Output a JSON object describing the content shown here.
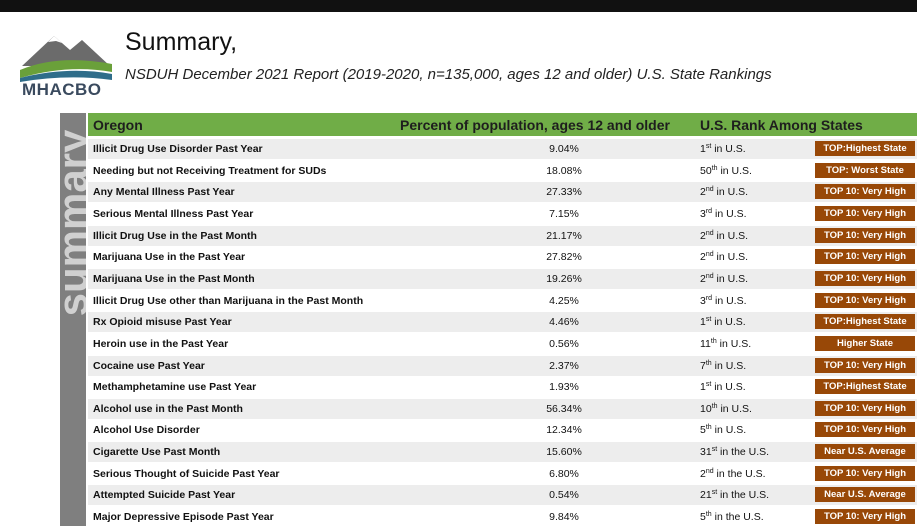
{
  "header": {
    "logo": "MHACBO",
    "title": "Summary,",
    "subtitle": "NSDUH December 2021 Report (2019-2020, n=135,000, ages 12 and older) U.S. State Rankings",
    "sidebar": "summary"
  },
  "table": {
    "columns": [
      "Oregon",
      "Percent of population, ages 12 and older",
      "U.S. Rank Among States"
    ],
    "rows": [
      {
        "name": "Illicit Drug Use Disorder Past Year",
        "percent": "9.04%",
        "rank": {
          "n": "1",
          "sup": "st",
          "text": " in U.S."
        },
        "badge": "TOP:Highest State"
      },
      {
        "name": "Needing but not Receiving Treatment for SUDs",
        "percent": "18.08%",
        "rank": {
          "n": "50",
          "sup": "th",
          "text": " in U.S."
        },
        "badge": "TOP: Worst State"
      },
      {
        "name": "Any Mental Illness Past Year",
        "percent": "27.33%",
        "rank": {
          "n": "2",
          "sup": "nd",
          "text": " in U.S."
        },
        "badge": "TOP 10: Very High"
      },
      {
        "name": "Serious Mental Illness Past Year",
        "percent": "7.15%",
        "rank": {
          "n": "3",
          "sup": "rd",
          "text": " in U.S."
        },
        "badge": "TOP 10: Very High"
      },
      {
        "name": "Illicit Drug Use in the Past Month",
        "percent": "21.17%",
        "rank": {
          "n": "2",
          "sup": "nd",
          "text": " in U.S."
        },
        "badge": "TOP 10: Very High"
      },
      {
        "name": "Marijuana Use in the Past Year",
        "percent": "27.82%",
        "rank": {
          "n": "2",
          "sup": "nd",
          "text": " in U.S."
        },
        "badge": "TOP 10: Very High"
      },
      {
        "name": "Marijuana Use in the Past Month",
        "percent": "19.26%",
        "rank": {
          "n": "2",
          "sup": "nd",
          "text": " in U.S."
        },
        "badge": "TOP 10: Very High"
      },
      {
        "name": "Illicit Drug Use other than Marijuana in the Past Month",
        "percent": "4.25%",
        "rank": {
          "n": "3",
          "sup": "rd",
          "text": " in U.S."
        },
        "badge": "TOP 10: Very High"
      },
      {
        "name": "Rx Opioid misuse Past Year",
        "percent": "4.46%",
        "rank": {
          "n": "1",
          "sup": "st",
          "text": " in U.S."
        },
        "badge": "TOP:Highest State"
      },
      {
        "name": "Heroin use in the Past Year",
        "percent": "0.56%",
        "rank": {
          "n": "11",
          "sup": "th",
          "text": " in U.S."
        },
        "badge": "Higher State"
      },
      {
        "name": "Cocaine use Past Year",
        "percent": "2.37%",
        "rank": {
          "n": "7",
          "sup": "th",
          "text": " in U.S."
        },
        "badge": "TOP 10: Very High"
      },
      {
        "name": "Methamphetamine use Past Year",
        "percent": "1.93%",
        "rank": {
          "n": "1",
          "sup": "st",
          "text": " in U.S."
        },
        "badge": "TOP:Highest State"
      },
      {
        "name": "Alcohol use in the Past Month",
        "percent": "56.34%",
        "rank": {
          "n": "10",
          "sup": "th",
          "text": " in U.S."
        },
        "badge": "TOP 10: Very High"
      },
      {
        "name": "Alcohol Use Disorder",
        "percent": "12.34%",
        "rank": {
          "n": "5",
          "sup": "th",
          "text": " in U.S."
        },
        "badge": "TOP 10: Very High"
      },
      {
        "name": "Cigarette Use Past Month",
        "percent": "15.60%",
        "rank": {
          "n": "31",
          "sup": "st",
          "text": " in the U.S."
        },
        "badge": "Near U.S. Average"
      },
      {
        "name": "Serious Thought of Suicide Past Year",
        "percent": "6.80%",
        "rank": {
          "n": "2",
          "sup": "nd",
          "text": " in the U.S."
        },
        "badge": "TOP 10: Very High"
      },
      {
        "name": "Attempted Suicide Past Year",
        "percent": "0.54%",
        "rank": {
          "n": "21",
          "sup": "st",
          "text": " in the U.S."
        },
        "badge": "Near U.S. Average"
      },
      {
        "name": "Major Depressive Episode Past Year",
        "percent": "9.84%",
        "rank": {
          "n": "5",
          "sup": "th",
          "text": " in the U.S."
        },
        "badge": "TOP 10: Very High"
      }
    ]
  }
}
